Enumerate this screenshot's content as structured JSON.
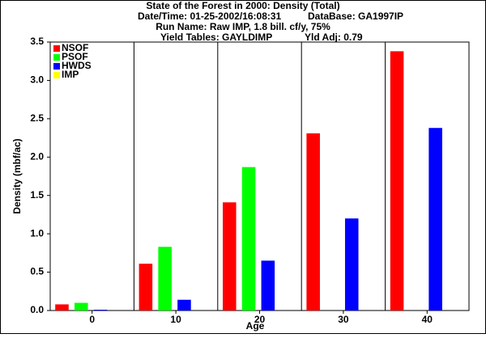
{
  "chart_data": {
    "type": "bar",
    "title": "State of the Forest in 2000: Density (Total)",
    "subtitle_lines": [
      [
        "Date/Time: 01-25-2002/16:08:31",
        "DataBase: GA1997IP"
      ],
      [
        "Run Name: Raw IMP, 1.8 bill. cf/y, 75%"
      ],
      [
        "Yield Tables: GAYLDIMP",
        "Yld Adj: 0.79"
      ]
    ],
    "x_label": "Age",
    "y_label": "Density (mbf/ac)",
    "categories": [
      "0",
      "10",
      "20",
      "30",
      "40"
    ],
    "series": [
      {
        "name": "NSOF",
        "color": "#ff0000",
        "values": [
          0.08,
          0.61,
          1.41,
          2.31,
          3.38
        ]
      },
      {
        "name": "PSOF",
        "color": "#00ff00",
        "values": [
          0.1,
          0.83,
          1.87,
          0,
          0
        ]
      },
      {
        "name": "HWDS",
        "color": "#0000ff",
        "values": [
          0.01,
          0.14,
          0.65,
          1.2,
          2.38
        ]
      },
      {
        "name": "IMP",
        "color": "#ffff00",
        "values": [
          0,
          0,
          0,
          0,
          0
        ]
      }
    ],
    "ylim": [
      0,
      3.5
    ],
    "yticks": [
      {
        "value": 0,
        "label": "0.0"
      },
      0.5,
      {
        "value": 1,
        "label": "1.0"
      },
      1.5,
      {
        "value": 2,
        "label": "2.0"
      },
      2.5,
      {
        "value": 3,
        "label": "3.0"
      },
      3.5
    ],
    "grid": true,
    "legend": "top-left"
  }
}
